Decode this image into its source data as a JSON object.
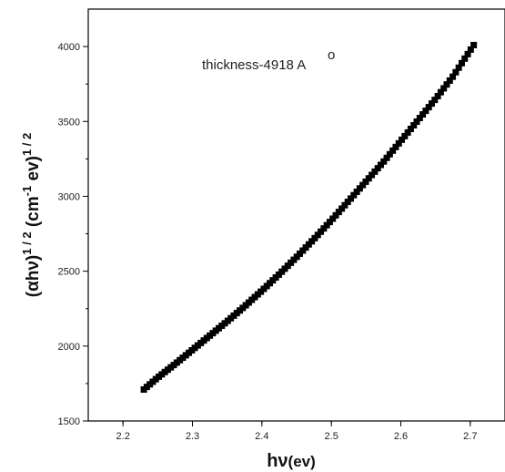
{
  "chart_data": {
    "type": "scatter",
    "annotation": {
      "main": "thickness-4918 A",
      "superscript": "o"
    },
    "xlabel": {
      "main": "hν",
      "unit": "(ev)"
    },
    "ylabel": "(αhν)^(1/2) (cm^-1 ev)^(1/2)",
    "ylabel_parts": {
      "p1": "(αhν)",
      "e1": "1 / 2",
      "p2": " (cm",
      "e2": "-1",
      "p3": " ev)",
      "e3": "1 / 2"
    },
    "xlim": [
      2.15,
      2.75
    ],
    "ylim": [
      1500,
      4250
    ],
    "xticks": [
      2.2,
      2.3,
      2.4,
      2.5,
      2.6,
      2.7
    ],
    "xtick_labels": [
      "2.2",
      "2.3",
      "2.4",
      "2.5",
      "2.6",
      "2.7"
    ],
    "yticks": [
      1500,
      2000,
      2500,
      3000,
      3500,
      4000
    ],
    "ytick_labels": [
      "1500",
      "2000",
      "2500",
      "3000",
      "3500",
      "4000"
    ],
    "marker": "square",
    "marker_color": "#000000",
    "series": [
      {
        "x": [
          2.23,
          2.25,
          2.275,
          2.3,
          2.325,
          2.35,
          2.375,
          2.4,
          2.425,
          2.45,
          2.475,
          2.5,
          2.525,
          2.55,
          2.575,
          2.6,
          2.625,
          2.65,
          2.675,
          2.705
        ],
        "values": [
          1710,
          1790,
          1880,
          1975,
          2070,
          2165,
          2265,
          2370,
          2480,
          2595,
          2715,
          2840,
          2970,
          3100,
          3230,
          3370,
          3510,
          3650,
          3800,
          4010
        ]
      }
    ]
  }
}
